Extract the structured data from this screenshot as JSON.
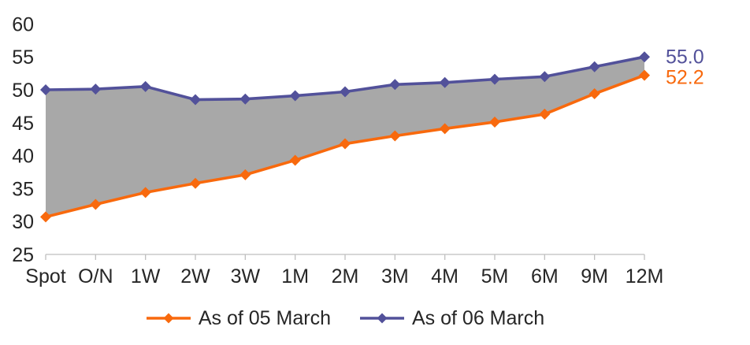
{
  "chart_data": {
    "type": "line",
    "title": "",
    "xlabel": "",
    "ylabel": "",
    "categories": [
      "Spot",
      "O/N",
      "1W",
      "2W",
      "3W",
      "1M",
      "2M",
      "3M",
      "4M",
      "5M",
      "6M",
      "9M",
      "12M"
    ],
    "series": [
      {
        "name": "As of 05 March",
        "color": "#F8690D",
        "marker": "diamond",
        "values": [
          30.7,
          32.6,
          34.4,
          35.8,
          37.1,
          39.3,
          41.8,
          43.0,
          44.1,
          45.1,
          46.3,
          49.4,
          52.2
        ],
        "end_label": "52.2"
      },
      {
        "name": "As of 06 March",
        "color": "#52519A",
        "marker": "diamond",
        "values": [
          50.0,
          50.1,
          50.5,
          48.5,
          48.6,
          49.1,
          49.7,
          50.8,
          51.1,
          51.6,
          52.0,
          53.5,
          55.0
        ],
        "end_label": "55.0"
      }
    ],
    "yticks": [
      25,
      30,
      35,
      40,
      45,
      50,
      55,
      60
    ],
    "ylim": [
      25,
      60
    ],
    "grid": false,
    "legend_position": "bottom",
    "fill_between_series": true,
    "fill_color": "#A8A8A8",
    "axis_color": "#BFBFBF",
    "text_color": "#262626"
  }
}
